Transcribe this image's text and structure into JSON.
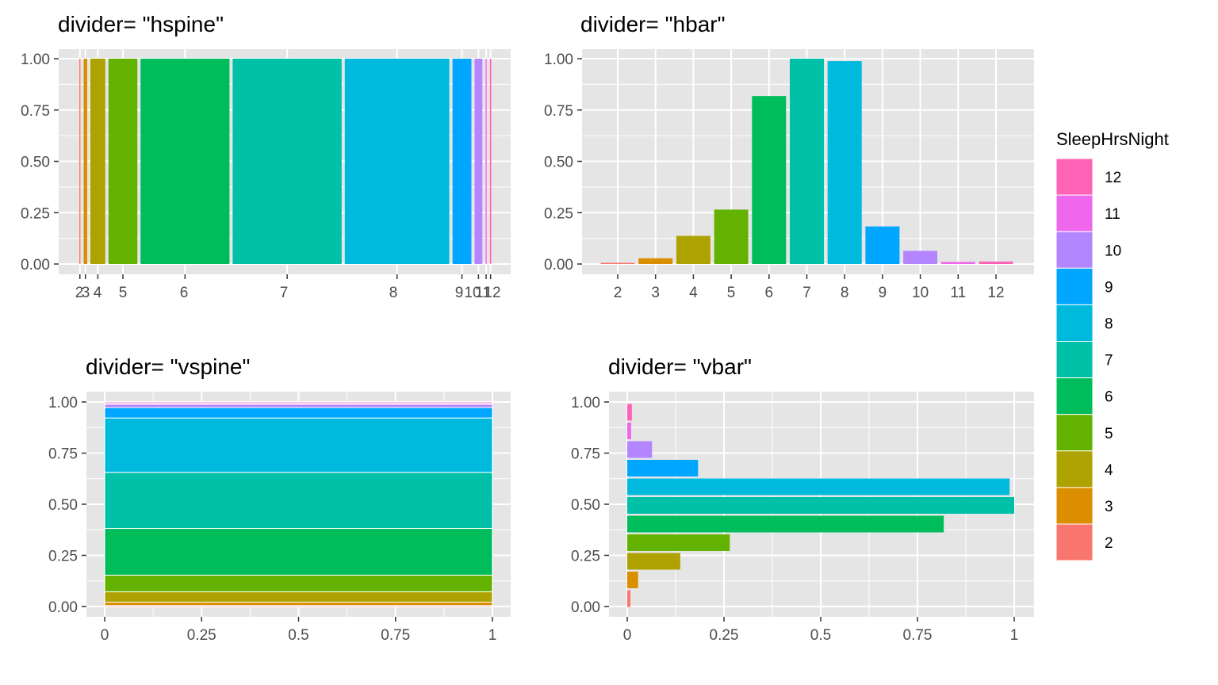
{
  "colors": {
    "panel_bg": "#e5e5e5",
    "grid": "#ffffff",
    "tick_text": "#4d4d4d",
    "palette": [
      "#f8766d",
      "#db8e00",
      "#aea200",
      "#64b200",
      "#00bd5c",
      "#00c1a7",
      "#00bade",
      "#00a6ff",
      "#b385ff",
      "#ef67eb",
      "#ff63b6"
    ]
  },
  "chart_data": [
    {
      "type": "bar",
      "divider": "hspine",
      "title": "divider= \"hspine\"",
      "categories": [
        "2",
        "3",
        "4",
        "5",
        "6",
        "7",
        "8",
        "9",
        "10",
        "11",
        "12"
      ],
      "weights": [
        0.005,
        0.016,
        0.067,
        0.13,
        0.4,
        0.49,
        0.47,
        0.085,
        0.035,
        0.004,
        0.006
      ],
      "values": [
        1,
        1,
        1,
        1,
        1,
        1,
        1,
        1,
        1,
        1,
        1
      ],
      "y_ticks": [
        "0.00",
        "0.25",
        "0.50",
        "0.75",
        "1.00"
      ],
      "x_tick_labels": [
        "2",
        "3",
        "4",
        "5",
        "6",
        "7",
        "8",
        "9",
        "10",
        "11",
        "12"
      ],
      "ylim": [
        0,
        1
      ]
    },
    {
      "type": "bar",
      "divider": "hbar",
      "title": "divider= \"hbar\"",
      "categories": [
        "2",
        "3",
        "4",
        "5",
        "6",
        "7",
        "8",
        "9",
        "10",
        "11",
        "12"
      ],
      "values": [
        0.005,
        0.028,
        0.137,
        0.265,
        0.818,
        1.0,
        0.988,
        0.183,
        0.064,
        0.01,
        0.012
      ],
      "y_ticks": [
        "0.00",
        "0.25",
        "0.50",
        "0.75",
        "1.00"
      ],
      "x_tick_labels": [
        "2",
        "3",
        "4",
        "5",
        "6",
        "7",
        "8",
        "9",
        "10",
        "11",
        "12"
      ],
      "ylim": [
        0,
        1
      ]
    },
    {
      "type": "bar",
      "divider": "vspine",
      "title": "divider= \"vspine\"",
      "categories": [
        "2",
        "3",
        "4",
        "5",
        "6",
        "7",
        "8",
        "9",
        "10",
        "11",
        "12"
      ],
      "weights": [
        0.005,
        0.016,
        0.05,
        0.08,
        0.225,
        0.27,
        0.262,
        0.05,
        0.018,
        0.003,
        0.006
      ],
      "values": [
        1,
        1,
        1,
        1,
        1,
        1,
        1,
        1,
        1,
        1,
        1
      ],
      "y_ticks": [
        "0.00",
        "0.25",
        "0.50",
        "0.75",
        "1.00"
      ],
      "x_ticks": [
        "0",
        "0.25",
        "0.5",
        "0.75",
        "1"
      ],
      "xlim": [
        0,
        1
      ],
      "ylim": [
        0,
        1
      ]
    },
    {
      "type": "bar",
      "divider": "vbar",
      "title": "divider= \"vbar\"",
      "categories": [
        "2",
        "3",
        "4",
        "5",
        "6",
        "7",
        "8",
        "9",
        "10",
        "11",
        "12"
      ],
      "values": [
        0.005,
        0.028,
        0.137,
        0.265,
        0.818,
        1.0,
        0.988,
        0.183,
        0.064,
        0.01,
        0.012
      ],
      "y_ticks": [
        "0.00",
        "0.25",
        "0.50",
        "0.75",
        "1.00"
      ],
      "x_ticks": [
        "0",
        "0.25",
        "0.5",
        "0.75",
        "1"
      ],
      "xlim": [
        0,
        1
      ],
      "ylim": [
        0,
        1
      ]
    }
  ],
  "legend": {
    "title": "SleepHrsNight",
    "items": [
      "12",
      "11",
      "10",
      "9",
      "8",
      "7",
      "6",
      "5",
      "4",
      "3",
      "2"
    ],
    "placement": "right"
  }
}
